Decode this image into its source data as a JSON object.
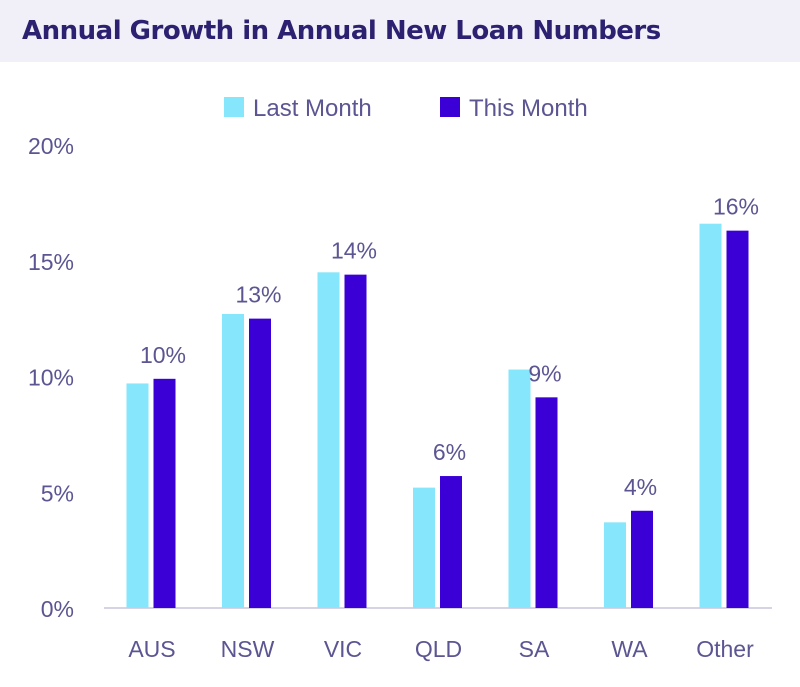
{
  "chart_data": {
    "type": "bar",
    "title": "Annual Growth in Annual New Loan Numbers",
    "categories": [
      "AUS",
      "NSW",
      "VIC",
      "QLD",
      "SA",
      "WA",
      "Other"
    ],
    "series": [
      {
        "name": "Last Month",
        "color": "#86e6fb",
        "values": [
          9.7,
          12.7,
          14.5,
          5.2,
          10.3,
          3.7,
          16.6
        ]
      },
      {
        "name": "This Month",
        "color": "#3a00d6",
        "values": [
          9.9,
          12.5,
          14.4,
          5.7,
          9.1,
          4.2,
          16.3
        ]
      }
    ],
    "data_labels": [
      "10%",
      "13%",
      "14%",
      "6%",
      "9%",
      "4%",
      "16%"
    ],
    "y_ticks": [
      "0%",
      "5%",
      "10%",
      "15%",
      "20%"
    ],
    "ylim": [
      0,
      20
    ],
    "grid": false,
    "legend": "top"
  }
}
